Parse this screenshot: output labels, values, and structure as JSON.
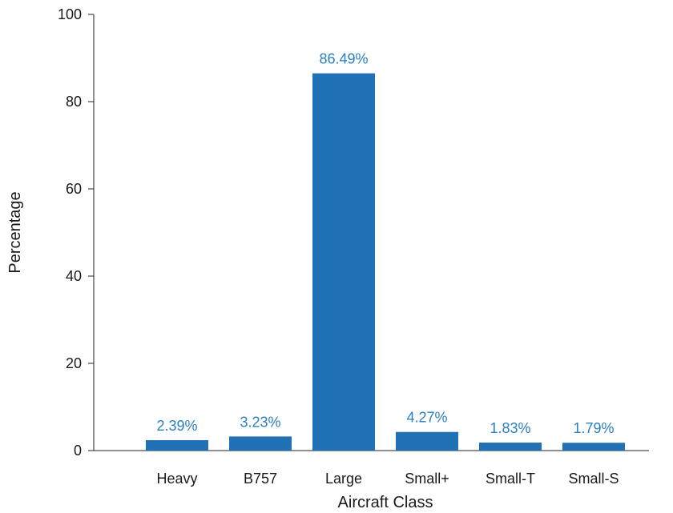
{
  "chart_data": {
    "type": "bar",
    "title": "",
    "xlabel": "Aircraft Class",
    "ylabel": "Percentage",
    "categories": [
      "Heavy",
      "B757",
      "Large",
      "Small+",
      "Small-T",
      "Small-S"
    ],
    "values": [
      2.39,
      3.23,
      86.49,
      4.27,
      1.83,
      1.79
    ],
    "data_labels": [
      "2.39%",
      "3.23%",
      "86.49%",
      "4.27%",
      "1.83%",
      "1.79%"
    ],
    "ylim": [
      0,
      100
    ],
    "yticks": [
      0,
      20,
      40,
      60,
      80,
      100
    ],
    "grid": false,
    "legend": "none",
    "bar_color": "#2171b5",
    "label_color": "#2a7fc1"
  }
}
